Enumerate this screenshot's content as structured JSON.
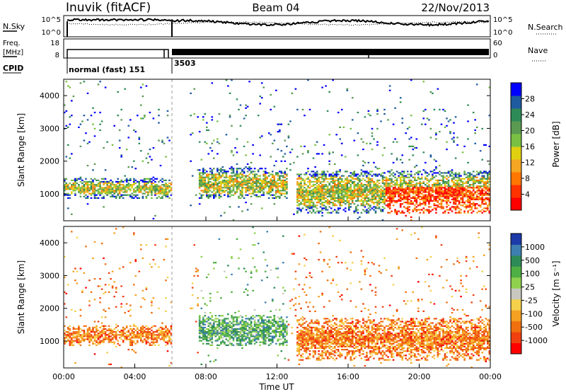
{
  "header": {
    "station": "Inuvik (fitACF)",
    "beam": "Beam 04",
    "date": "22/Nov/2013"
  },
  "sky_panel": {
    "label": "N.Sky",
    "left_ticks": [
      "10^5",
      "10^0"
    ],
    "right_ticks": [
      "10^5",
      "10^0"
    ],
    "right_label": "N.Search"
  },
  "freq_panel": {
    "label_line1": "Freq.",
    "label_line2": "[MHz]",
    "left_ticks": [
      "18",
      "8"
    ],
    "right_ticks": [
      "60",
      "0"
    ],
    "right_label": "Nave"
  },
  "cpid": {
    "label": "CPID",
    "segments": [
      {
        "name": "normal (fast) 151",
        "start_hour": 0.0,
        "end_hour": 5.95
      },
      {
        "name": "3503",
        "start_hour": 5.95,
        "end_hour": 24.0
      }
    ]
  },
  "power_panel": {
    "ylabel": "Slant Range [km]",
    "yticks": [
      "1000",
      "2000",
      "3000",
      "4000"
    ],
    "colorbar_label": "Power [dB]",
    "colorbar_ticks": [
      "4",
      "8",
      "12",
      "16",
      "20",
      "24",
      "28"
    ],
    "colors": [
      "#0000ff",
      "#1e5aa0",
      "#2e8b57",
      "#5a9a50",
      "#7ac143",
      "#e0d010",
      "#f5a623",
      "#ff7700",
      "#ff3300",
      "#ff0000"
    ]
  },
  "velocity_panel": {
    "ylabel": "Slant Range [km]",
    "yticks": [
      "1000",
      "2000",
      "3000",
      "4000"
    ],
    "colorbar_label": "Velocity [m s⁻¹]",
    "colorbar_ticks": [
      "1000",
      "500",
      "100",
      "25",
      "-25",
      "-100",
      "-500",
      "-1000"
    ],
    "colors": [
      "#1c3aa8",
      "#3d7fb0",
      "#2e8b57",
      "#4fae44",
      "#8fd14f",
      "#c8c8c0",
      "#f5d04a",
      "#f5a020",
      "#f07010",
      "#f04010",
      "#ff0000"
    ]
  },
  "x_axis": {
    "ticks": [
      "00:00",
      "04:00",
      "08:00",
      "12:00",
      "16:00",
      "20:00",
      "00:00"
    ],
    "label": "Time UT"
  },
  "chart_data": {
    "type": "heatmap",
    "x_range_hours": [
      0,
      24
    ],
    "y_range_km": [
      180,
      4500
    ],
    "series": [
      {
        "name": "Power [dB]",
        "zrange": [
          0,
          30
        ]
      },
      {
        "name": "Velocity [m s⁻¹]",
        "zrange": [
          -1000,
          1000
        ]
      }
    ],
    "dominant_bands_km": [
      {
        "start_hour": 0.0,
        "end_hour": 6.0,
        "range_km": [
          900,
          1400
        ]
      },
      {
        "start_hour": 7.5,
        "end_hour": 12.5,
        "range_km": [
          900,
          1700
        ]
      },
      {
        "start_hour": 13.0,
        "end_hour": 24.0,
        "range_km": [
          500,
          1600
        ]
      }
    ]
  }
}
